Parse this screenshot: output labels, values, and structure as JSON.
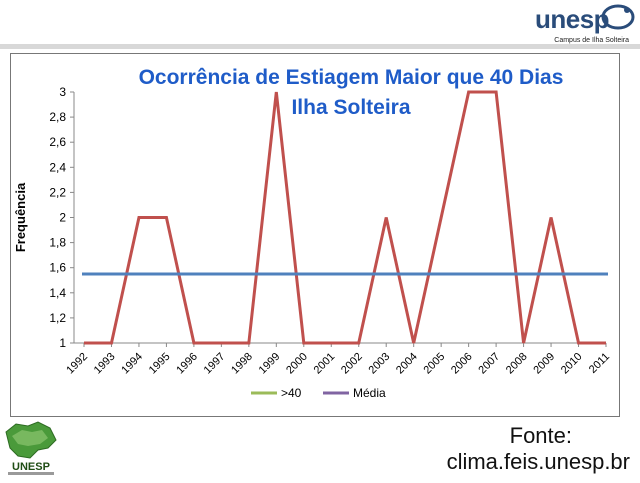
{
  "header": {
    "logo_text": "unesp",
    "logo_subtitle": "Campus de Ilha Solteira"
  },
  "chart_data": {
    "type": "line",
    "title_line1": "Ocorrência de Estiagem Maior que 40 Dias",
    "title_line2": "Ilha Solteira",
    "ylabel": "Frequência",
    "xlabel": "",
    "ylim": [
      1,
      3
    ],
    "yticks": [
      "1",
      "1,2",
      "1,4",
      "1,6",
      "1,8",
      "2",
      "2,2",
      "2,4",
      "2,6",
      "2,8",
      "3"
    ],
    "x": [
      "1992",
      "1993",
      "1994",
      "1995",
      "1996",
      "1997",
      "1998",
      "1999",
      "2000",
      "2001",
      "2002",
      "2003",
      "2004",
      "2005",
      "2006",
      "2007",
      "2008",
      "2009",
      "2010",
      "2011"
    ],
    "series": [
      {
        "name": ">40",
        "color": "#c0504d",
        "values": [
          1,
          1,
          2,
          2,
          1,
          1,
          1,
          3,
          1,
          1,
          1,
          2,
          1,
          2,
          3,
          3,
          1,
          2,
          1,
          1
        ]
      },
      {
        "name": "Média",
        "color": "#4f81bd",
        "values": [
          1.55,
          1.55,
          1.55,
          1.55,
          1.55,
          1.55,
          1.55,
          1.55,
          1.55,
          1.55,
          1.55,
          1.55,
          1.55,
          1.55,
          1.55,
          1.55,
          1.55,
          1.55,
          1.55,
          1.55
        ]
      }
    ],
    "legend": [
      {
        "name": ">40",
        "color": "#9bbb59"
      },
      {
        "name": "Média",
        "color": "#8064a2"
      }
    ],
    "legend_position": "bottom",
    "grid": false,
    "title_color": "#1f5cc8"
  },
  "footer": {
    "source_label": "Fonte:",
    "source_url": "clima.feis.unesp.br",
    "logo_text": "UNESP"
  }
}
